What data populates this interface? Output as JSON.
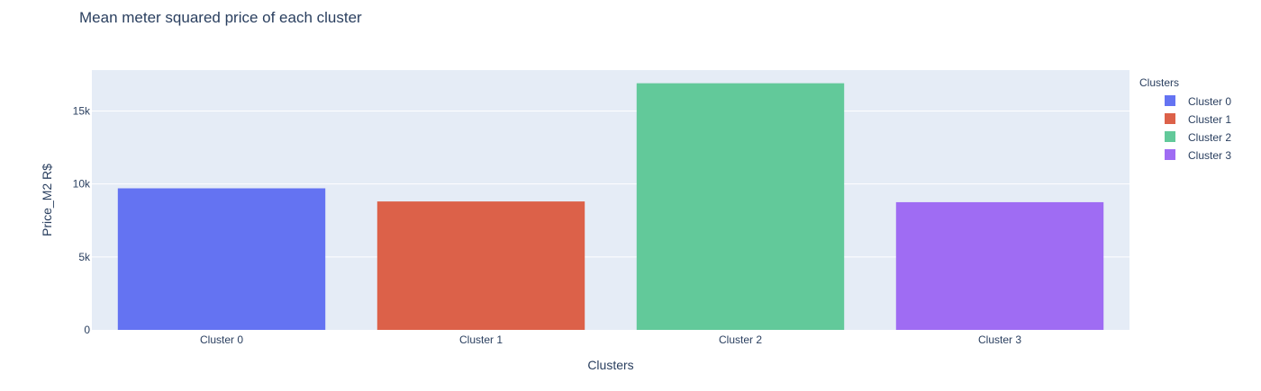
{
  "chart_data": {
    "type": "bar",
    "title": "Mean meter squared price of each cluster",
    "xlabel": "Clusters",
    "ylabel": "Price_M2 R$",
    "categories": [
      "Cluster 0",
      "Cluster 1",
      "Cluster 2",
      "Cluster 3"
    ],
    "values": [
      9700,
      8800,
      16900,
      8750
    ],
    "colors": [
      "#636efa",
      "#ef553b",
      "#00cc96",
      "#ab63fa"
    ],
    "bar_colors_rendered": [
      "#6473f2",
      "#dc6149",
      "#62c99a",
      "#9f6cf3"
    ],
    "ylim": [
      0,
      17800
    ],
    "yticks": [
      0,
      5000,
      10000,
      15000
    ],
    "ytick_labels": [
      "0",
      "5k",
      "10k",
      "15k"
    ],
    "grid": true,
    "plot_bg": "#e5ecf6",
    "legend": {
      "title": "Clusters",
      "placement": "right",
      "items": [
        "Cluster 0",
        "Cluster 1",
        "Cluster 2",
        "Cluster 3"
      ]
    }
  }
}
